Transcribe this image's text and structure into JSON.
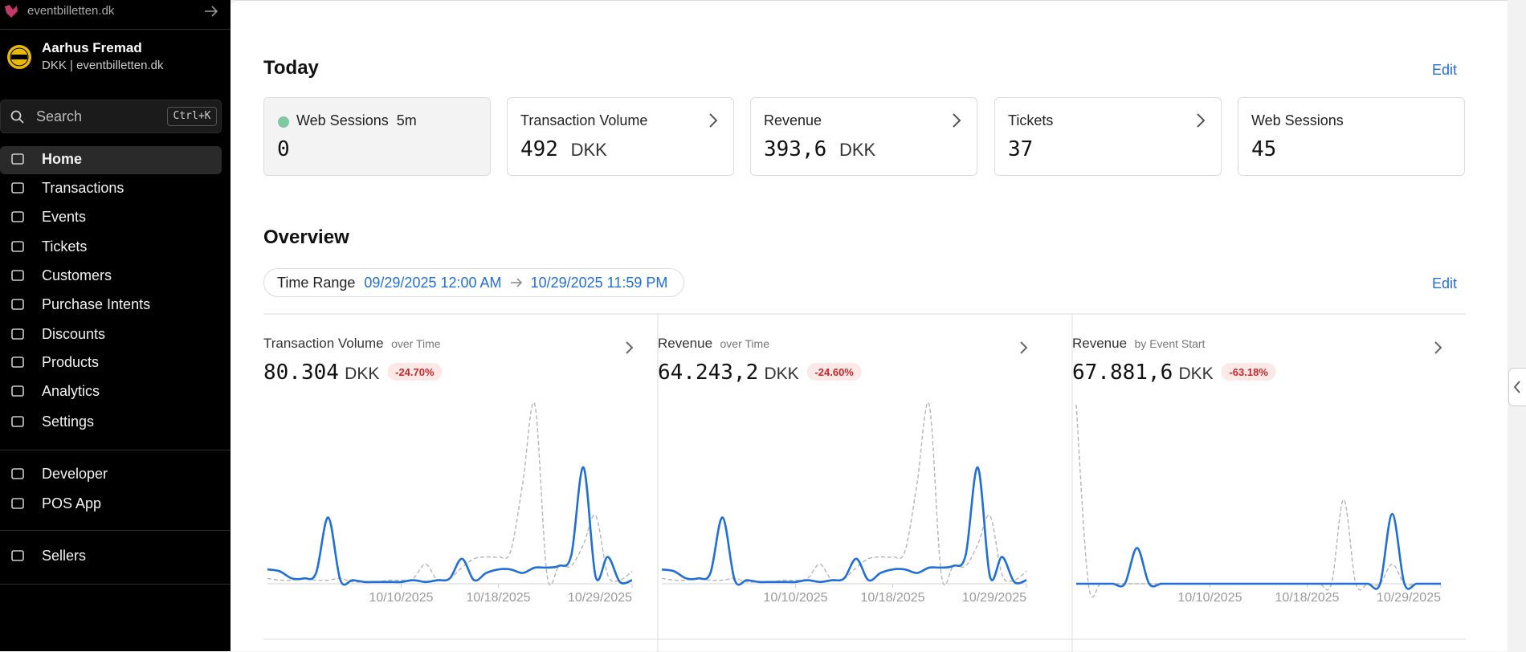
{
  "sidebar": {
    "brand": "eventbilletten.dk",
    "org_name": "Aarhus Fremad",
    "org_sub": "DKK | eventbilletten.dk",
    "search": "Search",
    "search_shortcut": "Ctrl+K",
    "nav": [
      "Home",
      "Transactions",
      "Events",
      "Tickets",
      "Customers",
      "Purchase Intents",
      "Discounts",
      "Products",
      "Analytics",
      "Settings"
    ],
    "nav2": [
      "Developer",
      "POS App"
    ],
    "nav3": [
      "Sellers"
    ]
  },
  "today": {
    "title": "Today",
    "edit": "Edit",
    "cards": [
      {
        "label": "Web Sessions",
        "badge": "5m",
        "value": "0"
      },
      {
        "label": "Transaction Volume",
        "value": "492",
        "unit": "DKK"
      },
      {
        "label": "Revenue",
        "value": "393,6",
        "unit": "DKK"
      },
      {
        "label": "Tickets",
        "value": "37"
      },
      {
        "label": "Web Sessions",
        "value": "45"
      }
    ]
  },
  "overview": {
    "title": "Overview",
    "edit": "Edit",
    "time_range_label": "Time Range",
    "time_start": "09/29/2025 12:00 AM",
    "time_end": "10/29/2025 11:59 PM"
  },
  "chart_data": [
    {
      "type": "line",
      "title": "Transaction Volume",
      "subtitle": "over Time",
      "value": "80.304",
      "unit": "DKK",
      "change": "-24.70%",
      "x": [
        "09/29/2025",
        "09/30/2025",
        "10/01/2025",
        "10/02/2025",
        "10/03/2025",
        "10/04/2025",
        "10/05/2025",
        "10/06/2025",
        "10/07/2025",
        "10/08/2025",
        "10/09/2025",
        "10/10/2025",
        "10/11/2025",
        "10/12/2025",
        "10/13/2025",
        "10/14/2025",
        "10/15/2025",
        "10/16/2025",
        "10/17/2025",
        "10/18/2025",
        "10/19/2025",
        "10/20/2025",
        "10/21/2025",
        "10/22/2025",
        "10/23/2025",
        "10/24/2025",
        "10/25/2025",
        "10/26/2025",
        "10/27/2025",
        "10/28/2025",
        "10/29/2025"
      ],
      "xticks": [
        "10/10/2025",
        "10/18/2025",
        "10/29/2025"
      ],
      "series": [
        {
          "color": "#b5b5b5",
          "dashed": true,
          "values": [
            3,
            2,
            2,
            3,
            2,
            2,
            3,
            1,
            1,
            1,
            2,
            2,
            3,
            11,
            2,
            3,
            9,
            14,
            15,
            15,
            18,
            56,
            100,
            5,
            10,
            10,
            22,
            38,
            5,
            2,
            7
          ]
        },
        {
          "color": "#1f6fd6",
          "dashed": false,
          "values": [
            8,
            7,
            3,
            3,
            6,
            37,
            2,
            2,
            1,
            1,
            1,
            1,
            2,
            1,
            2,
            3,
            14,
            2,
            6,
            8,
            8,
            6,
            9,
            9,
            10,
            16,
            65,
            4,
            15,
            1,
            2
          ]
        }
      ]
    },
    {
      "type": "line",
      "title": "Revenue",
      "subtitle": "over Time",
      "value": "64.243,2",
      "unit": "DKK",
      "change": "-24.60%",
      "x": [
        "09/29/2025",
        "09/30/2025",
        "10/01/2025",
        "10/02/2025",
        "10/03/2025",
        "10/04/2025",
        "10/05/2025",
        "10/06/2025",
        "10/07/2025",
        "10/08/2025",
        "10/09/2025",
        "10/10/2025",
        "10/11/2025",
        "10/12/2025",
        "10/13/2025",
        "10/14/2025",
        "10/15/2025",
        "10/16/2025",
        "10/17/2025",
        "10/18/2025",
        "10/19/2025",
        "10/20/2025",
        "10/21/2025",
        "10/22/2025",
        "10/23/2025",
        "10/24/2025",
        "10/25/2025",
        "10/26/2025",
        "10/27/2025",
        "10/28/2025",
        "10/29/2025"
      ],
      "xticks": [
        "10/10/2025",
        "10/18/2025",
        "10/29/2025"
      ],
      "series": [
        {
          "color": "#b5b5b5",
          "dashed": true,
          "values": [
            3,
            2,
            2,
            3,
            2,
            2,
            3,
            1,
            1,
            1,
            2,
            2,
            3,
            11,
            2,
            3,
            9,
            14,
            15,
            15,
            18,
            56,
            100,
            5,
            10,
            10,
            22,
            38,
            5,
            2,
            7
          ]
        },
        {
          "color": "#1f6fd6",
          "dashed": false,
          "values": [
            8,
            7,
            3,
            3,
            6,
            37,
            2,
            2,
            1,
            1,
            1,
            1,
            2,
            1,
            2,
            3,
            14,
            2,
            6,
            8,
            8,
            6,
            9,
            9,
            10,
            16,
            65,
            4,
            15,
            1,
            2
          ]
        }
      ]
    },
    {
      "type": "line",
      "title": "Revenue",
      "subtitle": "by Event Start",
      "value": "67.881,6",
      "unit": "DKK",
      "change": "-63.18%",
      "x": [
        "09/29/2025",
        "09/30/2025",
        "10/01/2025",
        "10/02/2025",
        "10/03/2025",
        "10/04/2025",
        "10/05/2025",
        "10/06/2025",
        "10/07/2025",
        "10/08/2025",
        "10/09/2025",
        "10/10/2025",
        "10/11/2025",
        "10/12/2025",
        "10/13/2025",
        "10/14/2025",
        "10/15/2025",
        "10/16/2025",
        "10/17/2025",
        "10/18/2025",
        "10/19/2025",
        "10/20/2025",
        "10/21/2025",
        "10/22/2025",
        "10/23/2025",
        "10/24/2025",
        "10/25/2025",
        "10/26/2025",
        "10/27/2025",
        "10/28/2025",
        "10/29/2025"
      ],
      "xticks": [
        "10/10/2025",
        "10/18/2025",
        "10/29/2025"
      ],
      "series": [
        {
          "color": "#b5b5b5",
          "dashed": true,
          "values": [
            100,
            0,
            0,
            0,
            0,
            0,
            0,
            0,
            0,
            0,
            0,
            0,
            0,
            0,
            0,
            0,
            0,
            0,
            0,
            0,
            0,
            0,
            47,
            0,
            0,
            0,
            11,
            0,
            0,
            0,
            0
          ]
        },
        {
          "color": "#1f6fd6",
          "dashed": false,
          "values": [
            0,
            0,
            0,
            0,
            0,
            20,
            0,
            0,
            0,
            0,
            0,
            0,
            0,
            0,
            0,
            0,
            0,
            0,
            0,
            0,
            0,
            0,
            0,
            0,
            0,
            0,
            39,
            0,
            0,
            0,
            0
          ]
        }
      ]
    }
  ]
}
